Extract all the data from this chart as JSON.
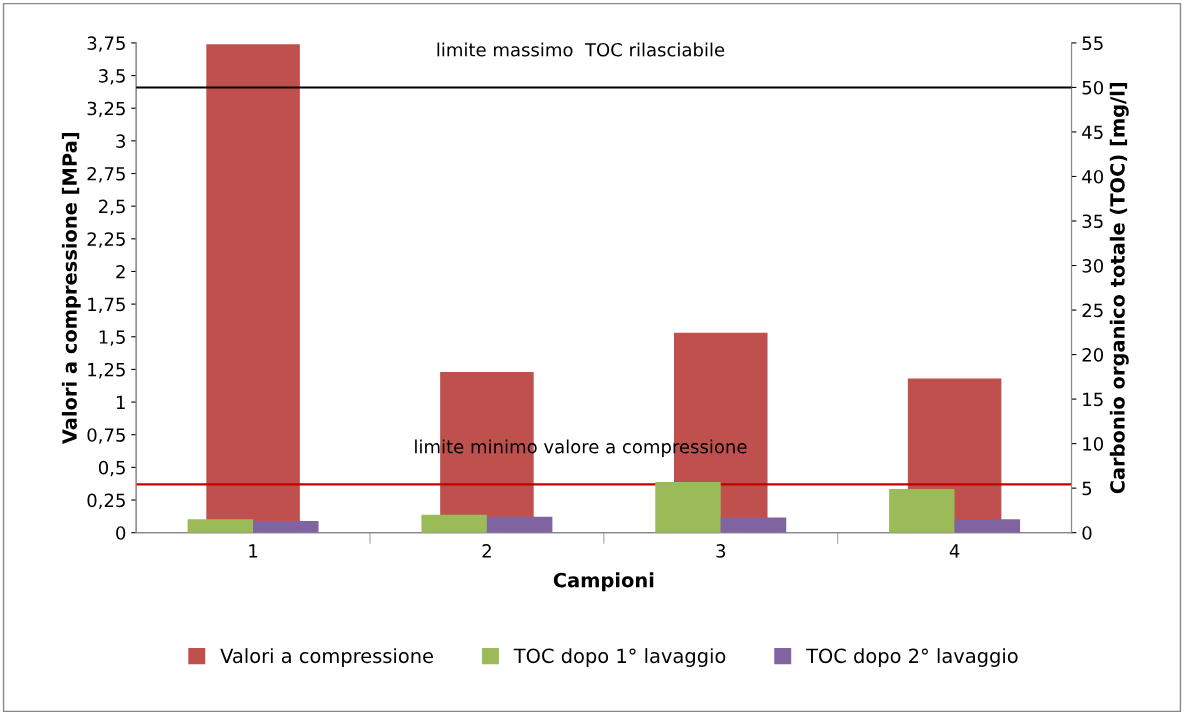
{
  "chart_data": {
    "type": "bar",
    "xlabel": "Campioni",
    "ylabel": "Valori a compressione [MPa]",
    "y2label": "Carbonio organico totale (TOC) [mg/l]",
    "categories": [
      "1",
      "2",
      "3",
      "4"
    ],
    "series": [
      {
        "name": "Valori a compressione",
        "color": "#c0504d",
        "values": [
          3.74,
          1.23,
          1.53,
          1.18
        ]
      },
      {
        "name": "TOC dopo 1° lavaggio",
        "color": "#9bbb59",
        "values": [
          1.5,
          2.0,
          5.7,
          4.9
        ],
        "axis": "y2"
      },
      {
        "name": "TOC dopo 2° lavaggio",
        "color": "#8064a2",
        "values": [
          1.3,
          1.8,
          1.7,
          1.5
        ],
        "axis": "y2"
      }
    ],
    "ylim": [
      0,
      3.75
    ],
    "yticks": [
      {
        "value": 0,
        "label": "0"
      },
      {
        "value": 0.25,
        "label": "0,25"
      },
      {
        "value": 0.5,
        "label": "0,5"
      },
      {
        "value": 0.75,
        "label": "0,75"
      },
      {
        "value": 1,
        "label": "1"
      },
      {
        "value": 1.25,
        "label": "1,25"
      },
      {
        "value": 1.5,
        "label": "1,5"
      },
      {
        "value": 1.75,
        "label": "1,75"
      },
      {
        "value": 2,
        "label": "2"
      },
      {
        "value": 2.25,
        "label": "2,25"
      },
      {
        "value": 2.5,
        "label": "2,5"
      },
      {
        "value": 2.75,
        "label": "2,75"
      },
      {
        "value": 3,
        "label": "3"
      },
      {
        "value": 3.25,
        "label": "3,25"
      },
      {
        "value": 3.5,
        "label": "3,5"
      },
      {
        "value": 3.75,
        "label": "3,75"
      }
    ],
    "y2lim": [
      0,
      55
    ],
    "y2ticks": [
      0,
      5,
      10,
      15,
      20,
      25,
      30,
      35,
      40,
      45,
      50,
      55
    ],
    "ref_lines": [
      {
        "axis": "y2",
        "value": 50,
        "label": "limite massimo  TOC rilasciabile",
        "color": "#000000"
      },
      {
        "axis": "y",
        "value": 0.37,
        "label": "limite minimo valore a compressione",
        "color": "#c00000"
      }
    ],
    "legend": "bottom",
    "grid": false
  }
}
